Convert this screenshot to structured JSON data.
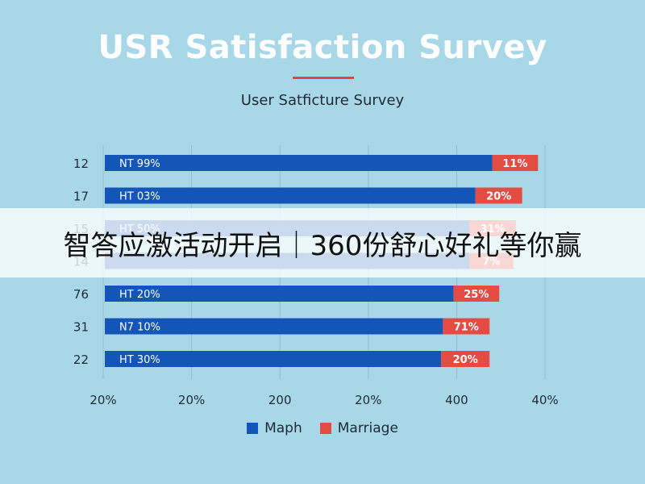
{
  "title": "USR Satisfaction Survey",
  "subtitle": "User Satficture Survey",
  "banner": {
    "text": "智答应激活动开启｜360份舒心好礼等你赢"
  },
  "colors": {
    "background": "#a8d8e8",
    "primary": "#1356b8",
    "secondary": "#e34b43",
    "title": "#ffffff",
    "accent_rule": "#e0463e"
  },
  "chart_data": {
    "type": "bar",
    "orientation": "horizontal",
    "stacked": true,
    "categories": [
      "12",
      "17",
      "15",
      "14",
      "76",
      "31",
      "22"
    ],
    "x_tick_labels": [
      "20%",
      "20%",
      "200",
      "20%",
      "400",
      "40%"
    ],
    "xlim": [
      0,
      500
    ],
    "grid": true,
    "legend_position": "bottom",
    "series": [
      {
        "name": "Maph",
        "color": "#1356b8",
        "values": [
          440,
          421,
          414,
          414,
          396,
          384,
          382
        ],
        "labels": [
          "NT 99%",
          "HT 03%",
          "HT 50%",
          "",
          "HT 20%",
          "N7 10%",
          "HT 30%"
        ]
      },
      {
        "name": "Marriage",
        "color": "#e34b43",
        "values": [
          52,
          53,
          53,
          50,
          52,
          53,
          55
        ],
        "labels": [
          "11%",
          "20%",
          "31%",
          "7%",
          "25%",
          "71%",
          "20%"
        ]
      }
    ]
  }
}
